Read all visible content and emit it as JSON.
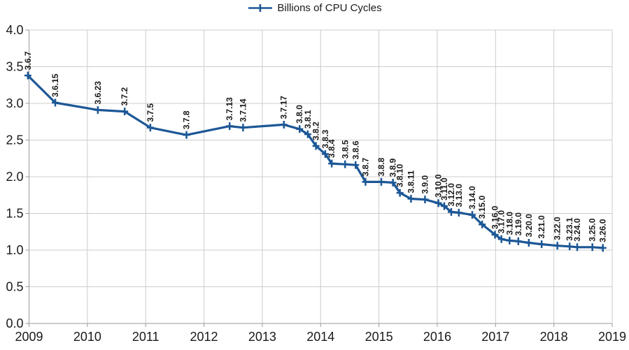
{
  "legend": {
    "label": "Billions of CPU Cycles"
  },
  "chart_data": {
    "type": "line",
    "title": "",
    "xlabel": "",
    "ylabel": "",
    "xlim": [
      2009,
      2019
    ],
    "ylim": [
      0.0,
      4.0
    ],
    "grid": true,
    "legend_position": "top-center",
    "x_tick_labels": [
      "2009",
      "2010",
      "2011",
      "2012",
      "2013",
      "2014",
      "2015",
      "2016",
      "2017",
      "2018",
      "2019"
    ],
    "y_tick_labels": [
      "0.0",
      "0.5",
      "1.0",
      "1.5",
      "2.0",
      "2.5",
      "3.0",
      "3.5",
      "4.0"
    ],
    "colors": {
      "series": "#1c5796",
      "gridline": "#cccccc",
      "axis": "#9a9a9a",
      "label_text": "#1a1a1a"
    },
    "series": [
      {
        "name": "Billions of CPU Cycles",
        "marker": "plus",
        "points": [
          {
            "label": "3.6.7",
            "x": 2008.98,
            "y": 3.38
          },
          {
            "label": "3.6.15",
            "x": 2009.45,
            "y": 3.01
          },
          {
            "label": "3.6.23",
            "x": 2010.18,
            "y": 2.91
          },
          {
            "label": "3.7.2",
            "x": 2010.64,
            "y": 2.89
          },
          {
            "label": "3.7.5",
            "x": 2011.08,
            "y": 2.67
          },
          {
            "label": "3.7.8",
            "x": 2011.7,
            "y": 2.57
          },
          {
            "label": "3.7.13",
            "x": 2012.44,
            "y": 2.69
          },
          {
            "label": "3.7.14",
            "x": 2012.67,
            "y": 2.67
          },
          {
            "label": "3.7.17",
            "x": 2013.37,
            "y": 2.71
          },
          {
            "label": "3.8.0",
            "x": 2013.64,
            "y": 2.65
          },
          {
            "label": "3.8.1",
            "x": 2013.78,
            "y": 2.58
          },
          {
            "label": "3.8.2",
            "x": 2013.92,
            "y": 2.42
          },
          {
            "label": "3.8.3",
            "x": 2014.08,
            "y": 2.31
          },
          {
            "label": "3.8.4",
            "x": 2014.19,
            "y": 2.18
          },
          {
            "label": "3.8.5",
            "x": 2014.42,
            "y": 2.17
          },
          {
            "label": "3.8.6",
            "x": 2014.6,
            "y": 2.16
          },
          {
            "label": "3.8.7",
            "x": 2014.77,
            "y": 1.93
          },
          {
            "label": "3.8.8",
            "x": 2015.04,
            "y": 1.93
          },
          {
            "label": "3.8.9",
            "x": 2015.24,
            "y": 1.92
          },
          {
            "label": "3.8.10",
            "x": 2015.36,
            "y": 1.78
          },
          {
            "label": "3.8.11",
            "x": 2015.55,
            "y": 1.7
          },
          {
            "label": "3.9.0",
            "x": 2015.79,
            "y": 1.69
          },
          {
            "label": "3.10.0",
            "x": 2016.02,
            "y": 1.64
          },
          {
            "label": "3.11.0",
            "x": 2016.12,
            "y": 1.6
          },
          {
            "label": "3.12.0",
            "x": 2016.24,
            "y": 1.52
          },
          {
            "label": "3.13.0",
            "x": 2016.37,
            "y": 1.51
          },
          {
            "label": "3.14.0",
            "x": 2016.6,
            "y": 1.48
          },
          {
            "label": "3.15.0",
            "x": 2016.77,
            "y": 1.35
          },
          {
            "label": "3.16.0",
            "x": 2016.99,
            "y": 1.21
          },
          {
            "label": "3.17.0",
            "x": 2017.1,
            "y": 1.15
          },
          {
            "label": "3.18.0",
            "x": 2017.24,
            "y": 1.13
          },
          {
            "label": "3.19.0",
            "x": 2017.39,
            "y": 1.12
          },
          {
            "label": "3.20.0",
            "x": 2017.57,
            "y": 1.1
          },
          {
            "label": "3.21.0",
            "x": 2017.79,
            "y": 1.08
          },
          {
            "label": "3.22.0",
            "x": 2018.06,
            "y": 1.06
          },
          {
            "label": "3.23.1",
            "x": 2018.27,
            "y": 1.05
          },
          {
            "label": "3.24.0",
            "x": 2018.4,
            "y": 1.04
          },
          {
            "label": "3.25.0",
            "x": 2018.66,
            "y": 1.04
          },
          {
            "label": "3.26.0",
            "x": 2018.84,
            "y": 1.03
          }
        ]
      }
    ]
  }
}
